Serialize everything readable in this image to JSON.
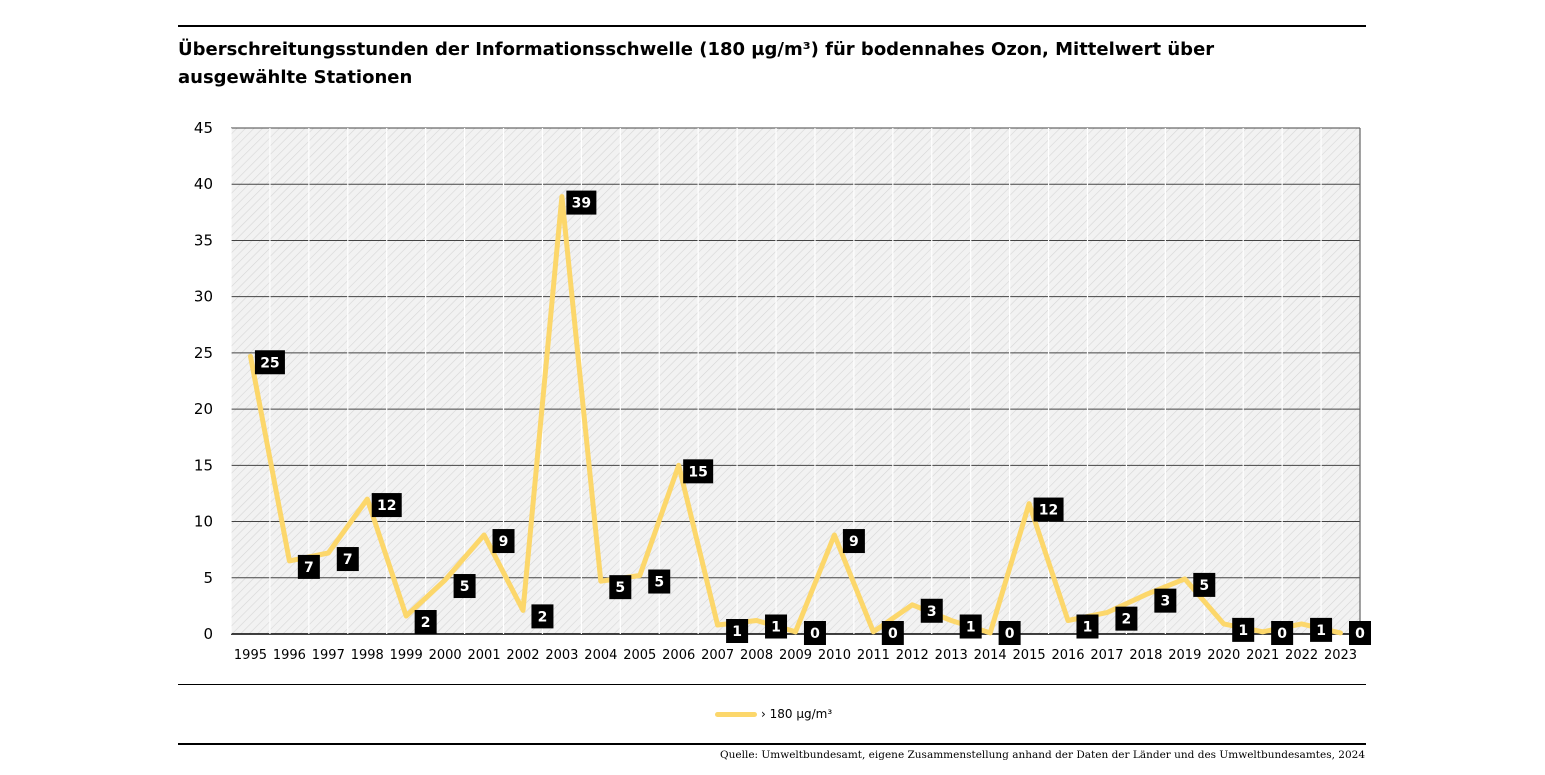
{
  "chart_data": {
    "type": "line",
    "title": "Überschreitungsstunden der Informationsschwelle (180 µg/m³) für bodennahes Ozon, Mittelwert über ausgewählte Stationen",
    "categories": [
      "1995",
      "1996",
      "1997",
      "1998",
      "1999",
      "2000",
      "2001",
      "2002",
      "2003",
      "2004",
      "2005",
      "2006",
      "2007",
      "2008",
      "2009",
      "2010",
      "2011",
      "2012",
      "2013",
      "2014",
      "2015",
      "2016",
      "2017",
      "2018",
      "2019",
      "2020",
      "2021",
      "2022",
      "2023"
    ],
    "series": [
      {
        "name": "› 180 µg/m³",
        "values": [
          24.7,
          6.5,
          7.2,
          12.0,
          1.6,
          4.8,
          8.8,
          2.1,
          38.9,
          4.7,
          5.2,
          15.0,
          0.8,
          1.2,
          0.2,
          8.8,
          0.2,
          2.6,
          1.2,
          0.1,
          11.6,
          1.2,
          1.9,
          3.5,
          4.9,
          0.9,
          0.2,
          0.9,
          0.1
        ],
        "labels": [
          "25",
          "7",
          "7",
          "12",
          "2",
          "5",
          "9",
          "2",
          "39",
          "5",
          "5",
          "15",
          "1",
          "1",
          "0",
          "9",
          "0",
          "3",
          "1",
          "0",
          "12",
          "1",
          "2",
          "3",
          "5",
          "1",
          "0",
          "1",
          "0"
        ],
        "color": "#fcd76b"
      }
    ],
    "ylim": [
      0,
      45
    ],
    "yticks": [
      "0",
      "5",
      "10",
      "15",
      "20",
      "25",
      "30",
      "35",
      "40",
      "45"
    ],
    "grid": true,
    "legend_position": "bottom-center",
    "xlabel": "",
    "ylabel": ""
  },
  "source": "Quelle: Umweltbundesamt, eigene Zusammenstellung anhand der Daten der Länder und des Umweltbundesamtes, 2024"
}
